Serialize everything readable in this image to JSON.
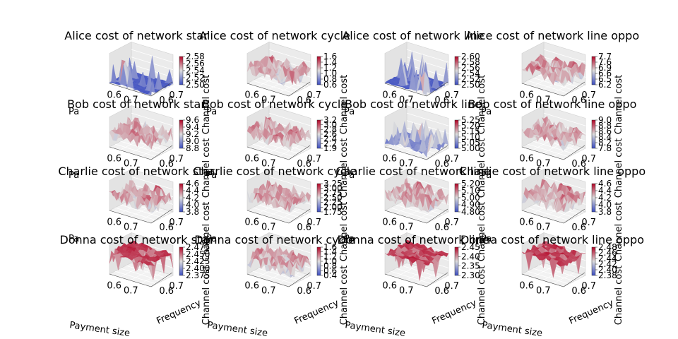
{
  "figure": {
    "xlabel": "Payment size",
    "ylabel": "Frequency",
    "zlabel": "Channel cost",
    "x_ticks": [
      "0.6",
      "0.7"
    ],
    "y_ticks": [
      "0.6",
      "0.7"
    ]
  },
  "colors": {
    "cmap_low": "#3b4cc0",
    "cmap_mid": "#dddddd",
    "cmap_high": "#b40426"
  },
  "chart_data": [
    {
      "type": "surface",
      "title": "Alice cost of network star",
      "zlim": [
        2.5,
        2.58
      ],
      "colorbar_ticks": [
        "2.58",
        "2.56",
        "2.54",
        "2.52",
        "2.50"
      ],
      "surface": "mostly flat near 2.50 with sharp spikes"
    },
    {
      "type": "surface",
      "title": "Alice cost of network cycle",
      "zlim": [
        0.0,
        1.6
      ],
      "colorbar_ticks": [
        "1.6",
        "1.4",
        "1.2",
        "1.0",
        "0.8",
        "0.6"
      ],
      "surface": "noisy"
    },
    {
      "type": "surface",
      "title": "Alice cost of network line",
      "zlim": [
        2.5,
        2.6
      ],
      "colorbar_ticks": [
        "2.60",
        "2.58",
        "2.56",
        "2.54",
        "2.52",
        "2.50"
      ],
      "surface": "mostly flat near 2.50 with spikes"
    },
    {
      "type": "surface",
      "title": "Alice cost of network line oppo",
      "zlim": [
        6.2,
        7.7
      ],
      "colorbar_ticks": [
        "7.7",
        "7.6",
        "6.9",
        "6.6",
        "6.5",
        "6.2"
      ],
      "surface": "noisy"
    },
    {
      "type": "surface",
      "title": "Bob cost of network star",
      "zlim": [
        8.8,
        9.6
      ],
      "colorbar_ticks": [
        "9.6",
        "9.4",
        "9.2",
        "9.0",
        "8.8"
      ],
      "surface": "noisy"
    },
    {
      "type": "surface",
      "title": "Bob cost of network cycle",
      "zlim": [
        1.9,
        3.2
      ],
      "colorbar_ticks": [
        "3.2",
        "3.0",
        "2.8",
        "2.6",
        "2.4",
        "2.2",
        "1.9"
      ],
      "surface": "noisy"
    },
    {
      "type": "surface",
      "title": "Bob cost of network line",
      "zlim": [
        5.0,
        5.25
      ],
      "colorbar_ticks": [
        "5.25",
        "5.20",
        "5.15",
        "5.10",
        "5.05",
        "5.00"
      ],
      "surface": "low with spikes"
    },
    {
      "type": "surface",
      "title": "Bob cost of network line oppo",
      "zlim": [
        7.8,
        9.0
      ],
      "colorbar_ticks": [
        "9.0",
        "8.8",
        "8.6",
        "8.4",
        "8.2",
        "7.8"
      ],
      "surface": "noisy"
    },
    {
      "type": "surface",
      "title": "Charlie cost of network star",
      "zlim": [
        3.8,
        4.6
      ],
      "colorbar_ticks": [
        "4.6",
        "4.4",
        "4.2",
        "4.0",
        "3.8"
      ],
      "surface": "noisy"
    },
    {
      "type": "surface",
      "title": "Charlie cost of network cycle",
      "zlim": [
        1.75,
        3.25
      ],
      "colorbar_ticks": [
        "3.25",
        "3.00",
        "2.75",
        "2.50",
        "2.25",
        "2.00",
        "1.75"
      ],
      "surface": "noisy"
    },
    {
      "type": "surface",
      "title": "Charlie cost of network line",
      "zlim": [
        4.8,
        5.2
      ],
      "colorbar_ticks": [
        "5.20",
        "5.10",
        "5.00",
        "4.90",
        "4.80"
      ],
      "surface": "noisy"
    },
    {
      "type": "surface",
      "title": "Charlie cost of network line oppo",
      "zlim": [
        3.8,
        4.6
      ],
      "colorbar_ticks": [
        "4.6",
        "4.4",
        "4.2",
        "4.0",
        "3.8"
      ],
      "surface": "noisy"
    },
    {
      "type": "surface",
      "title": "Donna cost of network star",
      "zlim": [
        2.375,
        2.475
      ],
      "colorbar_ticks": [
        "2.475",
        "2.450",
        "2.425",
        "2.400",
        "2.375"
      ],
      "surface": "high plateau with a few dips"
    },
    {
      "type": "surface",
      "title": "Donna cost of network cycle",
      "zlim": [
        0.4,
        1.6
      ],
      "colorbar_ticks": [
        "1.6",
        "1.4",
        "1.2",
        "1.0",
        "0.8",
        "0.6",
        "0.4"
      ],
      "surface": "noisy"
    },
    {
      "type": "surface",
      "title": "Donna cost of network line",
      "zlim": [
        2.3,
        2.45
      ],
      "colorbar_ticks": [
        "2.45",
        "2.40",
        "2.35",
        "2.30"
      ],
      "surface": "high plateau with a few dips"
    },
    {
      "type": "surface",
      "title": "Donna cost of network line oppo",
      "zlim": [
        2.38,
        2.48
      ],
      "colorbar_ticks": [
        "2.48",
        "2.46",
        "2.44",
        "2.42",
        "2.40",
        "2.38"
      ],
      "surface": "high plateau with deep dips"
    }
  ]
}
